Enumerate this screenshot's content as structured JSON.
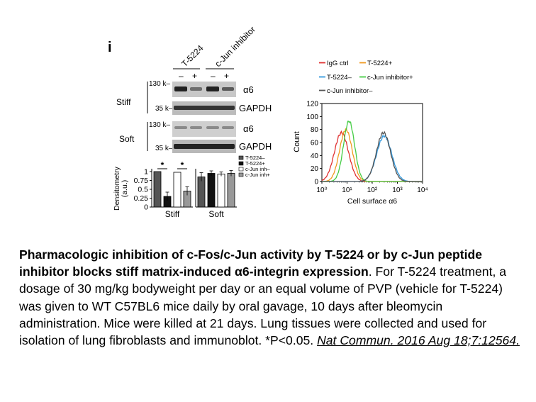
{
  "panel_label": "i",
  "blot": {
    "column_groups": [
      "T-5224",
      "c-Jun inhibitor"
    ],
    "lane_signs": [
      "–",
      "+",
      "–",
      "+"
    ],
    "conditions": [
      "Stiff",
      "Soft"
    ],
    "markers": [
      "130 k–",
      "35 k–",
      "130 k–",
      "35 k–"
    ],
    "band_labels": [
      "α6",
      "GAPDH",
      "α6",
      "GAPDH"
    ]
  },
  "chart_data": [
    {
      "type": "bar",
      "ylabel": "Densitometry (a.u.)",
      "ylim": [
        0,
        1
      ],
      "yticks": [
        "1",
        "0.75",
        "0.5",
        "0.25",
        "0"
      ],
      "categories": [
        "Stiff",
        "Soft"
      ],
      "significance": "*",
      "series": [
        {
          "name": "T-5224–",
          "color": "#555555",
          "values": [
            1.0,
            0.85
          ],
          "errors": [
            0.0,
            0.12
          ]
        },
        {
          "name": "T-5224+",
          "color": "#111111",
          "values": [
            0.3,
            0.95
          ],
          "errors": [
            0.12,
            0.07
          ]
        },
        {
          "name": "c-Jun inh–",
          "color": "#ffffff",
          "values": [
            0.98,
            0.93
          ],
          "errors": [
            0.0,
            0.06
          ]
        },
        {
          "name": "c-Jun inh+",
          "color": "#999999",
          "values": [
            0.45,
            0.95
          ],
          "errors": [
            0.12,
            0.08
          ]
        }
      ]
    },
    {
      "type": "line",
      "xlabel": "Cell surface α6",
      "ylabel": "Count",
      "x_scale": "log",
      "xlim": [
        1,
        10000
      ],
      "ylim": [
        0,
        120
      ],
      "xticks": [
        "10⁰",
        "10¹",
        "10²",
        "10³",
        "10⁴"
      ],
      "yticks": [
        "0",
        "20",
        "40",
        "60",
        "80",
        "100",
        "120"
      ],
      "legend_position": "top",
      "series": [
        {
          "name": "IgG ctrl",
          "color": "#e03030",
          "peak_x": 6,
          "peak_y": 75,
          "width": 0.28
        },
        {
          "name": "T-5224+",
          "color": "#f09a20",
          "peak_x": 9,
          "peak_y": 80,
          "width": 0.25
        },
        {
          "name": "T-5224–",
          "color": "#3399dd",
          "peak_x": 300,
          "peak_y": 70,
          "width": 0.3
        },
        {
          "name": "c-Jun inhibitor+",
          "color": "#44cc44",
          "peak_x": 12,
          "peak_y": 93,
          "width": 0.22
        },
        {
          "name": "c-Jun inhibitor–",
          "color": "#555555",
          "peak_x": 280,
          "peak_y": 75,
          "width": 0.28
        }
      ]
    }
  ],
  "caption": {
    "title": "Pharmacologic inhibition of c-Fos/c-Jun activity by T-5224 or by c-Jun peptide inhibitor blocks stiff matrix-induced α6-integrin expression",
    "title_end": ".",
    "body": " For T-5224 treatment, a dosage of 30 mg/kg bodyweight per day or an equal volume of PVP (vehicle for T-5224) was given to WT C57BL6 mice daily by oral gavage, 10 days after bleomycin administration. Mice were killed at 21 days. Lung tissues were collected and used for isolation of lung fibroblasts and immunoblot. *P<0.05. ",
    "reference": "Nat Commun. 2016 Aug 18;7:12564."
  }
}
